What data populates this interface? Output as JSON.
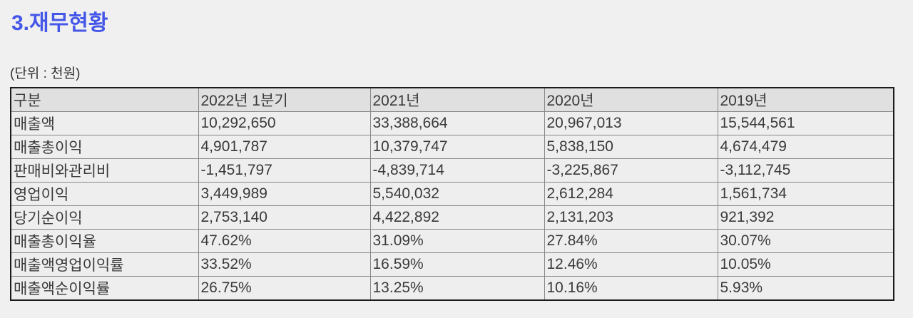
{
  "page": {
    "title": "3.재무현황",
    "unit_label": "(단위 : 천원)"
  },
  "colors": {
    "title_accent": "#4457e8",
    "page_background": "#f0f0f0",
    "header_row_background": "#e0e0e0",
    "data_row_background": "#eeeeee",
    "outer_border": "#1b1b1b",
    "grid_line": "#888888",
    "text": "#3a3a3a"
  },
  "table": {
    "columns": [
      "구분",
      "2022년 1분기",
      "2021년",
      "2020년",
      "2019년"
    ],
    "rows": [
      {
        "label": "매출액",
        "values": [
          "10,292,650",
          "33,388,664",
          "20,967,013",
          "15,544,561"
        ]
      },
      {
        "label": "매출총이익",
        "values": [
          "4,901,787",
          "10,379,747",
          "5,838,150",
          "4,674,479"
        ]
      },
      {
        "label": "판매비와관리비",
        "values": [
          "-1,451,797",
          "-4,839,714",
          "-3,225,867",
          "-3,112,745"
        ]
      },
      {
        "label": "영업이익",
        "values": [
          "3,449,989",
          "5,540,032",
          "2,612,284",
          "1,561,734"
        ]
      },
      {
        "label": "당기순이익",
        "values": [
          "2,753,140",
          "4,422,892",
          "2,131,203",
          "921,392"
        ]
      },
      {
        "label": "매출총이익율",
        "values": [
          "47.62%",
          "31.09%",
          "27.84%",
          "30.07%"
        ]
      },
      {
        "label": "매출액영업이익률",
        "values": [
          "33.52%",
          "16.59%",
          "12.46%",
          "10.05%"
        ]
      },
      {
        "label": "매출액순이익률",
        "values": [
          "26.75%",
          "13.25%",
          "10.16%",
          "5.93%"
        ]
      }
    ]
  }
}
